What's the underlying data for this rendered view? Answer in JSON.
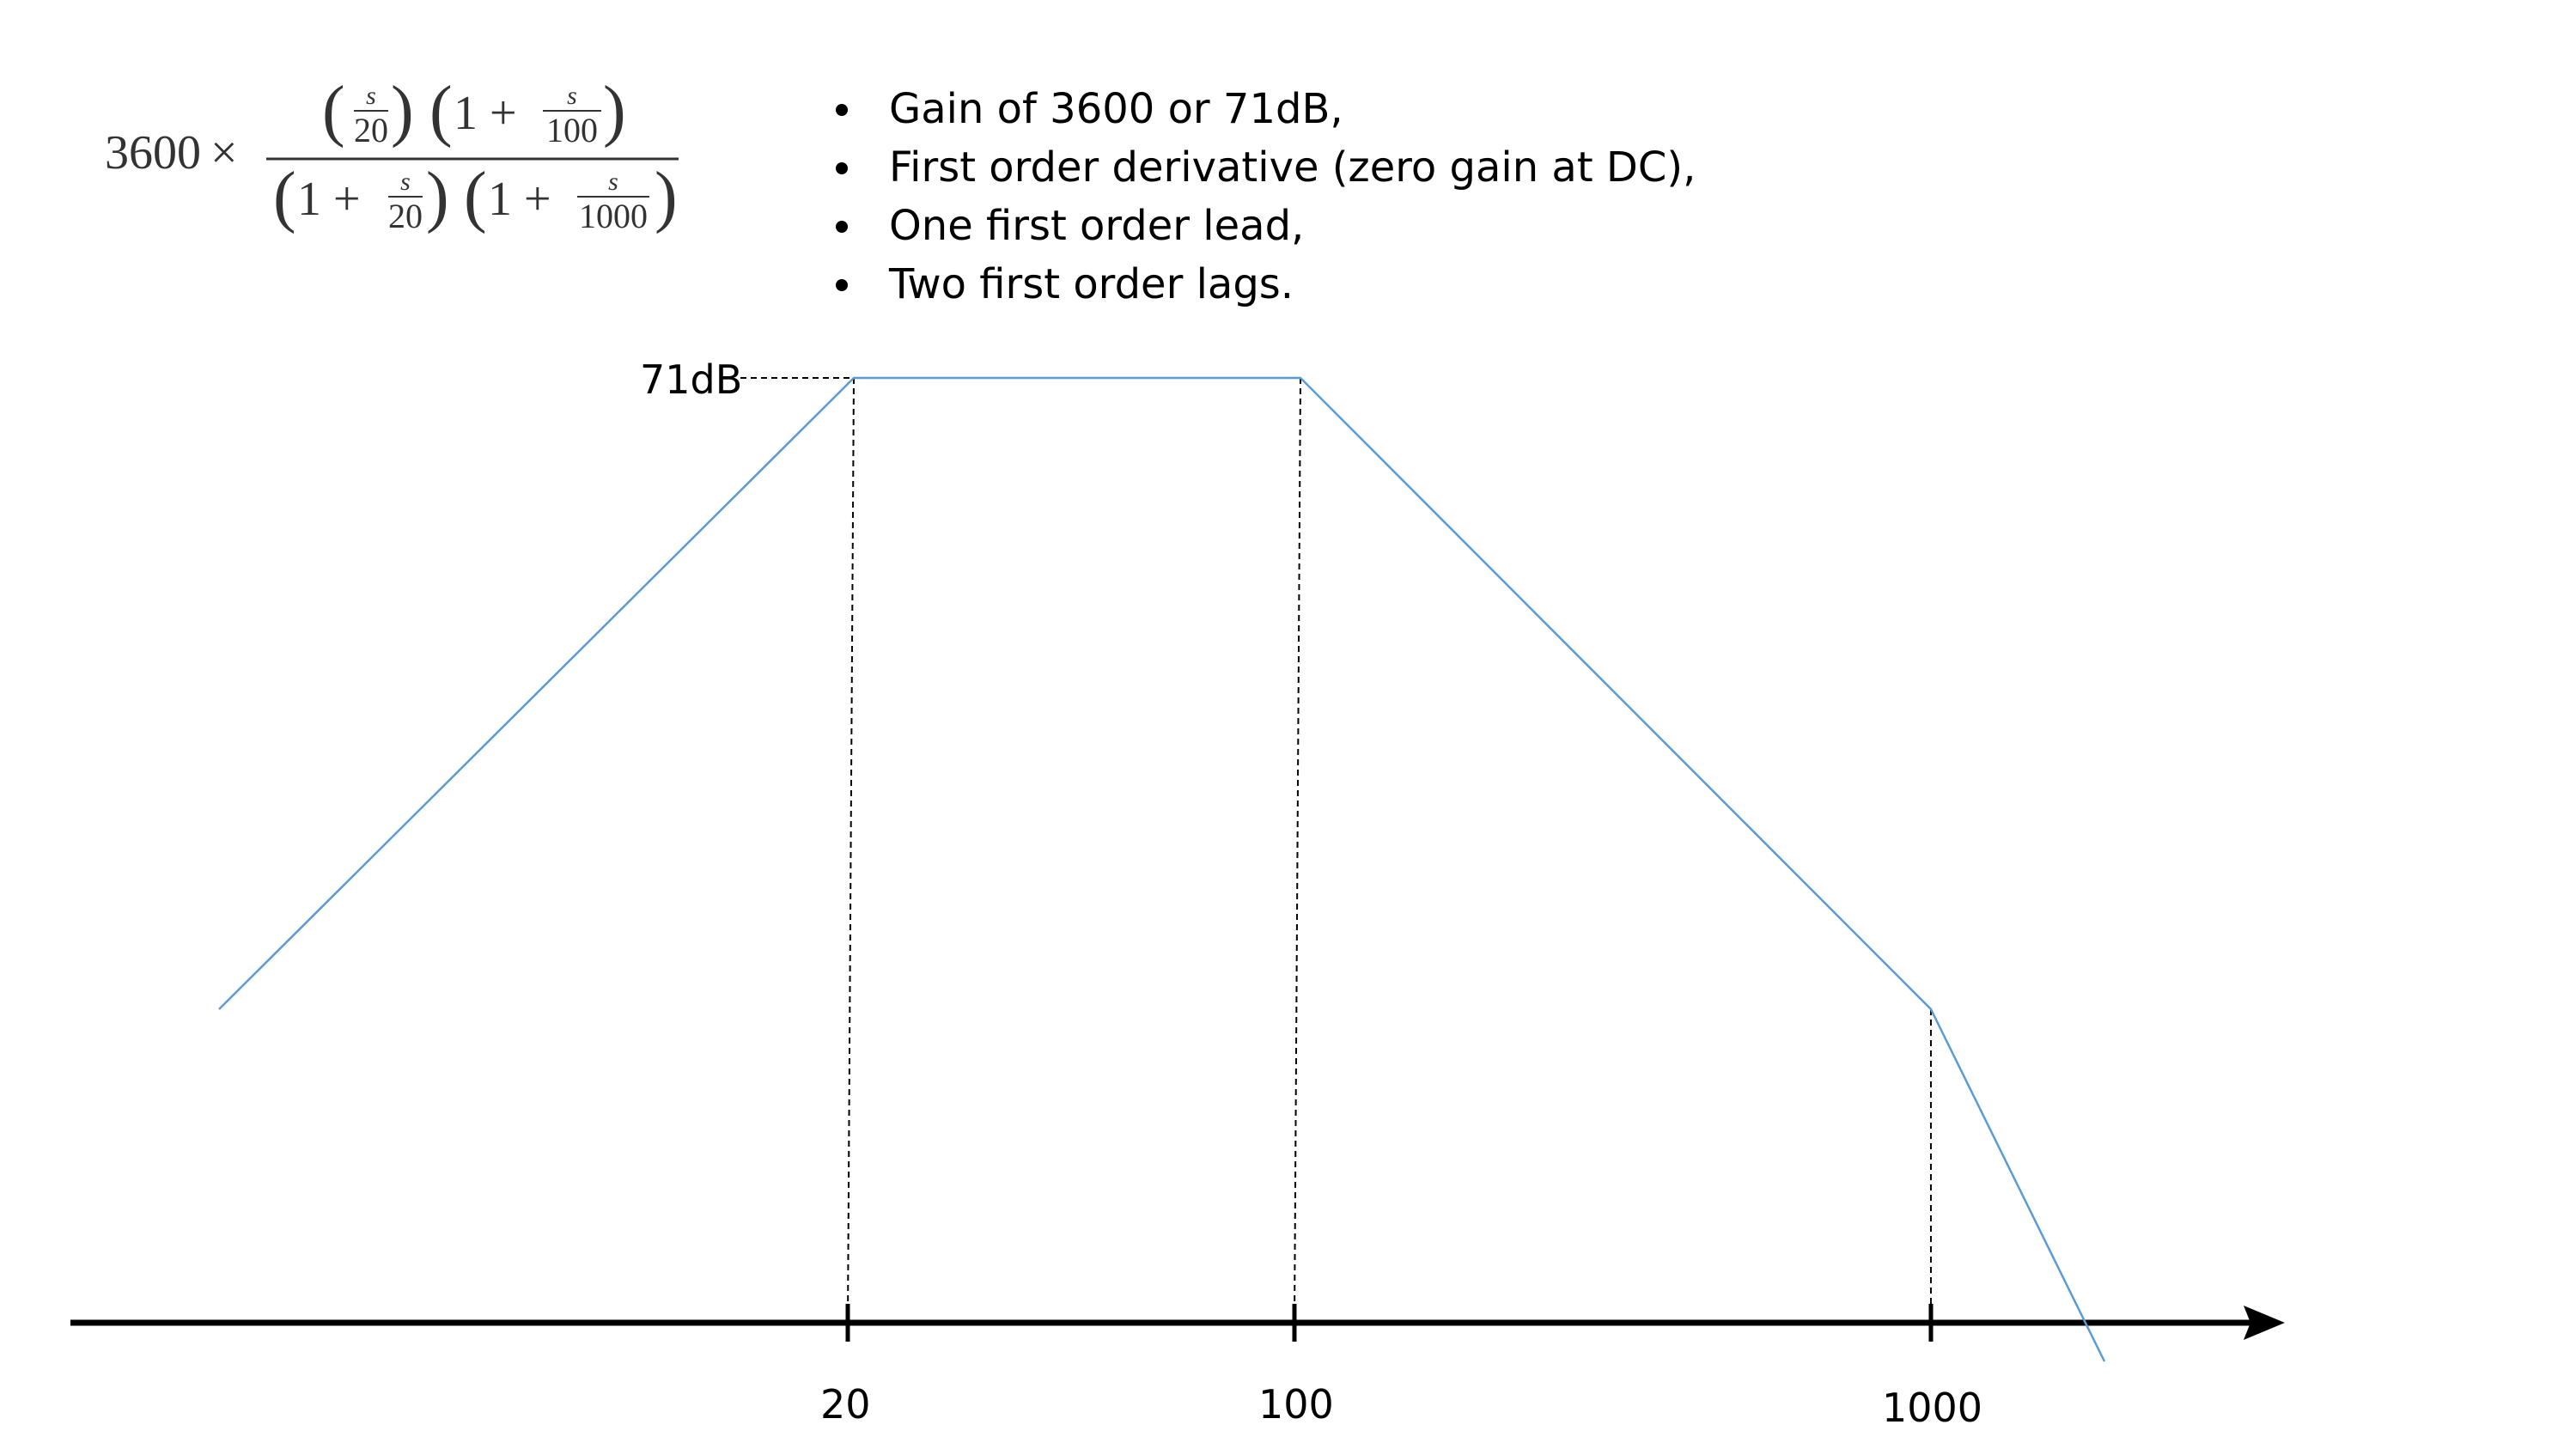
{
  "formula": {
    "gain": "3600",
    "times": "×",
    "s": "s",
    "one": "1",
    "plus": "+",
    "denom_20": "20",
    "denom_100": "100",
    "denom_1000": "1000"
  },
  "bullets": [
    "Gain of 3600 or 71dB,",
    "First order derivative (zero gain at DC),",
    "One first order lead,",
    "Two first order lags."
  ],
  "plot": {
    "gain_label": "71dB",
    "tick_labels": [
      "20",
      "100",
      "1000"
    ],
    "colors": {
      "curve": "#5b9bd5",
      "axis": "#000000",
      "guide": "#000000"
    }
  }
}
